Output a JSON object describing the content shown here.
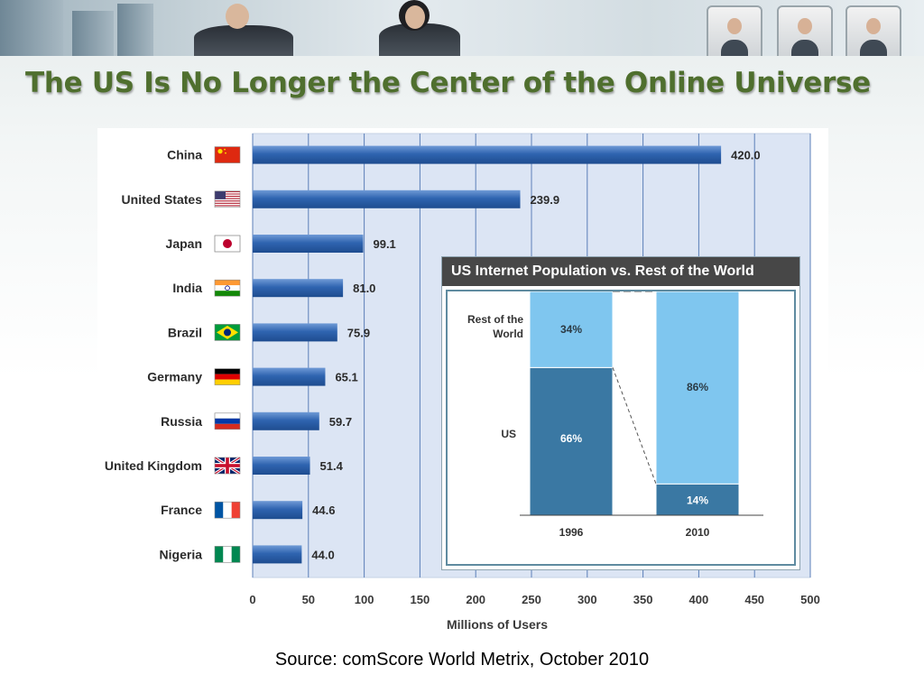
{
  "slide": {
    "title": "The US Is No Longer the Center of the Online Universe",
    "source": "Source: comScore World Metrix, October 2010"
  },
  "colors": {
    "title_green": "#4f6f2e",
    "bar_blue": "#2f64b0",
    "plot_bg": "#dce5f4",
    "us_share": "#3a78a3",
    "rest_share": "#7fc6ef"
  },
  "chart_data": [
    {
      "type": "bar",
      "orientation": "horizontal",
      "categories": [
        "China",
        "United States",
        "Japan",
        "India",
        "Brazil",
        "Germany",
        "Russia",
        "United Kingdom",
        "France",
        "Nigeria"
      ],
      "category_icons": [
        "china-flag-icon",
        "usa-flag-icon",
        "japan-flag-icon",
        "india-flag-icon",
        "brazil-flag-icon",
        "germany-flag-icon",
        "russia-flag-icon",
        "uk-flag-icon",
        "france-flag-icon",
        "nigeria-flag-icon"
      ],
      "values": [
        420.0,
        239.9,
        99.1,
        81.0,
        75.9,
        65.1,
        59.7,
        51.4,
        44.6,
        44.0
      ],
      "value_labels": [
        "420.0",
        "239.9",
        "99.1",
        "81.0",
        "75.9",
        "65.1",
        "59.7",
        "51.4",
        "44.6",
        "44.0"
      ],
      "xlabel": "Millions of Users",
      "xlim": [
        0,
        500
      ],
      "xticks": [
        0,
        50,
        100,
        150,
        200,
        250,
        300,
        350,
        400,
        450,
        500
      ],
      "grid": true
    },
    {
      "type": "bar",
      "stacked": true,
      "title": "US Internet Population vs. Rest of the World",
      "categories": [
        "1996",
        "2010"
      ],
      "series": [
        {
          "name": "US",
          "values": [
            66,
            14
          ],
          "labels": [
            "66%",
            "14%"
          ]
        },
        {
          "name": "Rest of the World",
          "values": [
            34,
            86
          ],
          "labels": [
            "34%",
            "86%"
          ]
        }
      ],
      "unit": "%"
    }
  ]
}
